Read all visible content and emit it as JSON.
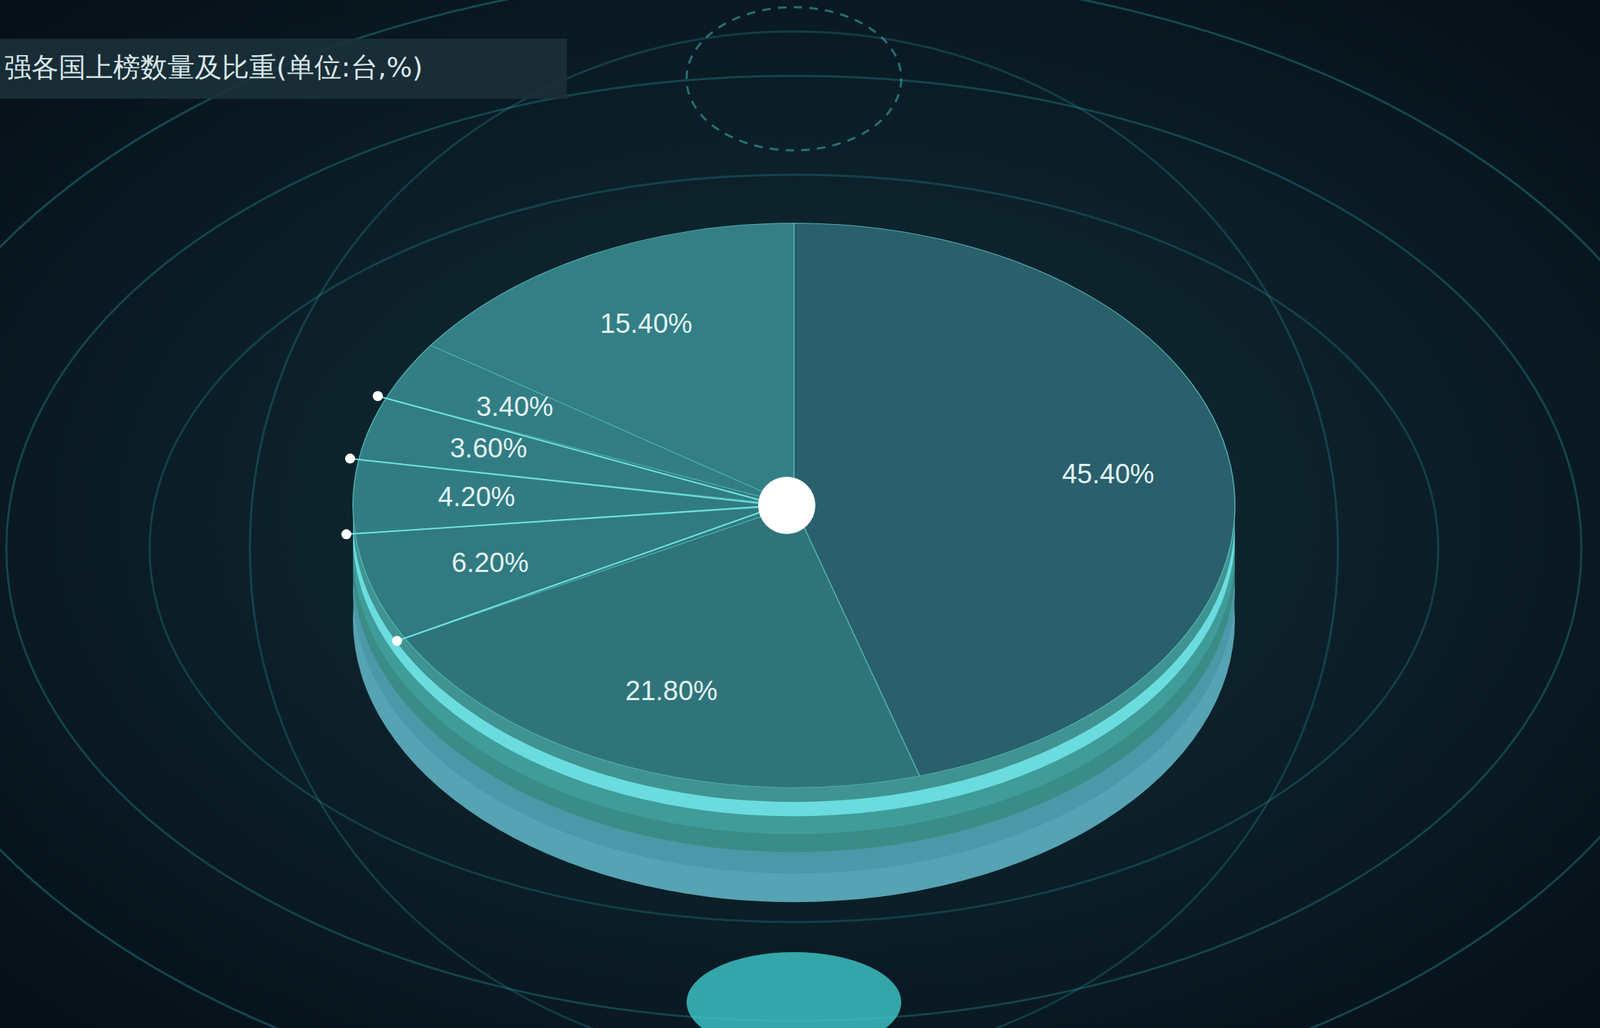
{
  "chart_data": {
    "type": "pie",
    "title": "强各国上榜数量及比重(单位:台,%)",
    "values": [
      45.4,
      21.8,
      6.2,
      4.2,
      3.6,
      3.4,
      15.4
    ],
    "value_labels": [
      "45.40%",
      "21.80%",
      "6.20%",
      "4.20%",
      "3.60%",
      "3.40%",
      "15.40%"
    ],
    "colors": [
      "#2a5f6c",
      "#2f7479",
      "#307a80",
      "#317c82",
      "#317d83",
      "#327e84",
      "#337f85"
    ],
    "data_labels": true
  }
}
